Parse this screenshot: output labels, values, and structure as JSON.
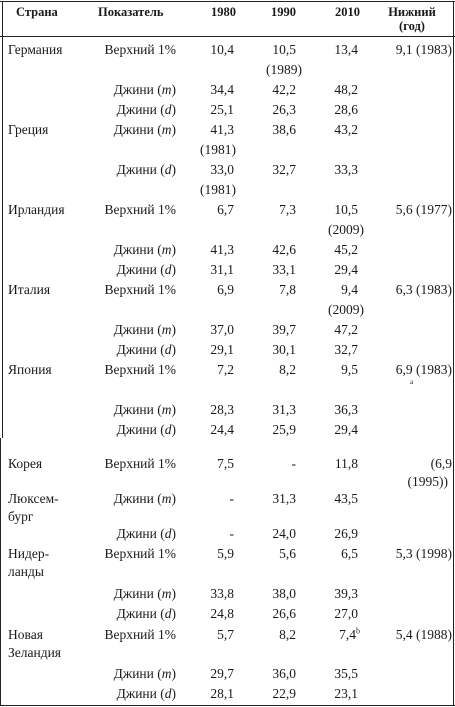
{
  "header": {
    "country": "Страна",
    "indicator": "Показатель",
    "y1980": "1980",
    "y1990": "1990",
    "y2010": "2010",
    "lower_l1": "Нижний",
    "lower_l2": "(год)"
  },
  "rows": [
    {
      "country_l1": "Германия",
      "indicator": "Верхний 1%",
      "v1980": "10,4",
      "v1990": "10,5",
      "v1990_note": "(1989)",
      "v2010": "13,4",
      "lower": "9,1 (1983)"
    },
    {
      "indicator_pre": "Джини (",
      "indicator_it": "m",
      "indicator_post": ")",
      "v1980": "34,4",
      "v1990": "42,2",
      "v2010": "48,2"
    },
    {
      "indicator_pre": "Джини (",
      "indicator_it": "d",
      "indicator_post": ")",
      "v1980": "25,1",
      "v1990": "26,3",
      "v2010": "28,6"
    },
    {
      "country_l1": "Греция",
      "indicator_pre": "Джини (",
      "indicator_it": "m",
      "indicator_post": ")",
      "v1980": "41,3",
      "v1980_note": "(1981)",
      "v1990": "38,6",
      "v2010": "43,2"
    },
    {
      "indicator_pre": "Джини (",
      "indicator_it": "d",
      "indicator_post": ")",
      "v1980": "33,0",
      "v1980_note": "(1981)",
      "v1990": "32,7",
      "v2010": "33,3"
    },
    {
      "country_l1": "Ирландия",
      "indicator": "Верхний 1%",
      "v1980": "6,7",
      "v1990": "7,3",
      "v2010": "10,5",
      "v2010_note": "(2009)",
      "lower": "5,6 (1977)"
    },
    {
      "indicator_pre": "Джини (",
      "indicator_it": "m",
      "indicator_post": ")",
      "v1980": "41,3",
      "v1990": "42,6",
      "v2010": "45,2"
    },
    {
      "indicator_pre": "Джини (",
      "indicator_it": "d",
      "indicator_post": ")",
      "v1980": "31,1",
      "v1990": "33,1",
      "v2010": "29,4"
    },
    {
      "country_l1": "Италия",
      "indicator": "Верхний 1%",
      "v1980": "6,9",
      "v1990": "7,8",
      "v2010": "9,4",
      "v2010_note": "(2009)",
      "lower": "6,3 (1983)"
    },
    {
      "indicator_pre": "Джини (",
      "indicator_it": "m",
      "indicator_post": ")",
      "v1980": "37,0",
      "v1990": "39,7",
      "v2010": "47,2"
    },
    {
      "indicator_pre": "Джини (",
      "indicator_it": "d",
      "indicator_post": ")",
      "v1980": "29,1",
      "v1990": "30,1",
      "v2010": "32,7"
    },
    {
      "country_l1": "Япония",
      "indicator": "Верхний 1%",
      "v1980": "7,2",
      "v1990": "8,2",
      "v2010": "9,5",
      "lower": "6,9 (1983)",
      "lower_mark": "a"
    },
    {
      "indicator_pre": "Джини (",
      "indicator_it": "m",
      "indicator_post": ")",
      "v1980": "28,3",
      "v1990": "31,3",
      "v2010": "36,3"
    },
    {
      "indicator_pre": "Джини (",
      "indicator_it": "d",
      "indicator_post": ")",
      "v1980": "24,4",
      "v1990": "25,9",
      "v2010": "29,4"
    },
    {
      "country_l1": "Корея",
      "indicator": "Верхний 1%",
      "v1980": "7,5",
      "v1990": "-",
      "v2010": "11,8",
      "lower": "(6,9",
      "lower_l2": "(1995))"
    },
    {
      "country_l1": "Люксем-",
      "country_l2": "бург",
      "indicator_pre": "Джини (",
      "indicator_it": "m",
      "indicator_post": ")",
      "v1980": "-",
      "v1990": "31,3",
      "v2010": "43,5"
    },
    {
      "indicator_pre": "Джини (",
      "indicator_it": "d",
      "indicator_post": ")",
      "v1980": "-",
      "v1990": "24,0",
      "v2010": "26,9"
    },
    {
      "country_l1": "Нидер-",
      "country_l2": "ланды",
      "indicator": "Верхний 1%",
      "v1980": "5,9",
      "v1990": "5,6",
      "v2010": "6,5",
      "lower": "5,3 (1998)"
    },
    {
      "indicator_pre": "Джини (",
      "indicator_it": "m",
      "indicator_post": ")",
      "v1980": "33,8",
      "v1990": "38,0",
      "v2010": "39,3"
    },
    {
      "indicator_pre": "Джини (",
      "indicator_it": "d",
      "indicator_post": ")",
      "v1980": "24,8",
      "v1990": "26,6",
      "v2010": "27,0"
    },
    {
      "country_l1": "Новая",
      "country_l2": "Зеландия",
      "indicator": "Верхний 1%",
      "v1980": "5,7",
      "v1990": "8,2",
      "v2010": "7,4",
      "v2010_sup": "b",
      "lower": "5,4 (1988)"
    },
    {
      "indicator_pre": "Джини (",
      "indicator_it": "m",
      "indicator_post": ")",
      "v1980": "29,7",
      "v1990": "36,0",
      "v2010": "35,5"
    },
    {
      "indicator_pre": "Джини (",
      "indicator_it": "d",
      "indicator_post": ")",
      "v1980": "28,1",
      "v1990": "22,9",
      "v2010": "23,1"
    }
  ]
}
